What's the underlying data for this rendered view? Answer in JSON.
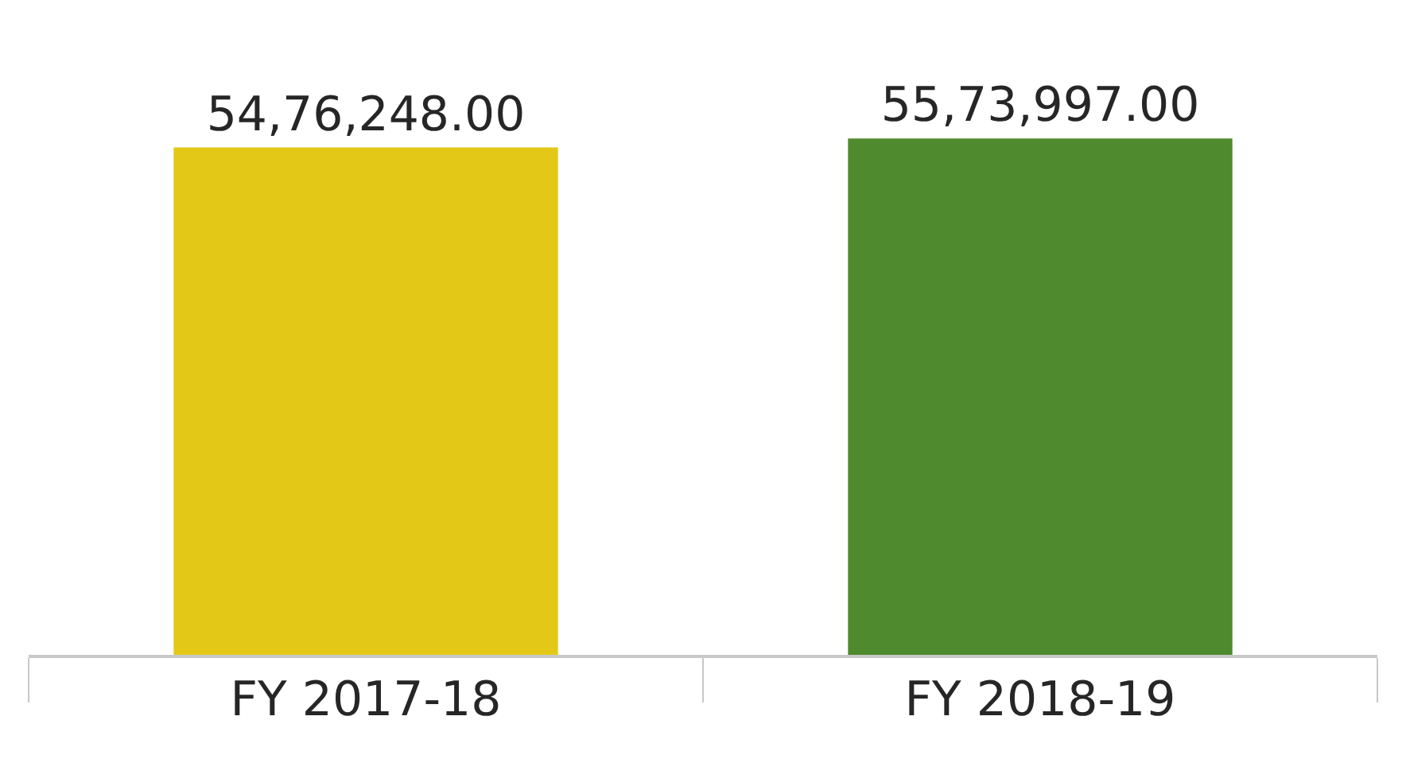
{
  "chart_data": {
    "type": "bar",
    "categories": [
      "FY 2017-18",
      "FY 2018-19"
    ],
    "values": [
      5476248,
      5573997
    ],
    "colors": [
      "#e3c818",
      "#4f8a2e"
    ],
    "value_labels": [
      "54,76,248.00",
      "55,73,997.00"
    ],
    "tick_labels": "x",
    "legend": false
  }
}
